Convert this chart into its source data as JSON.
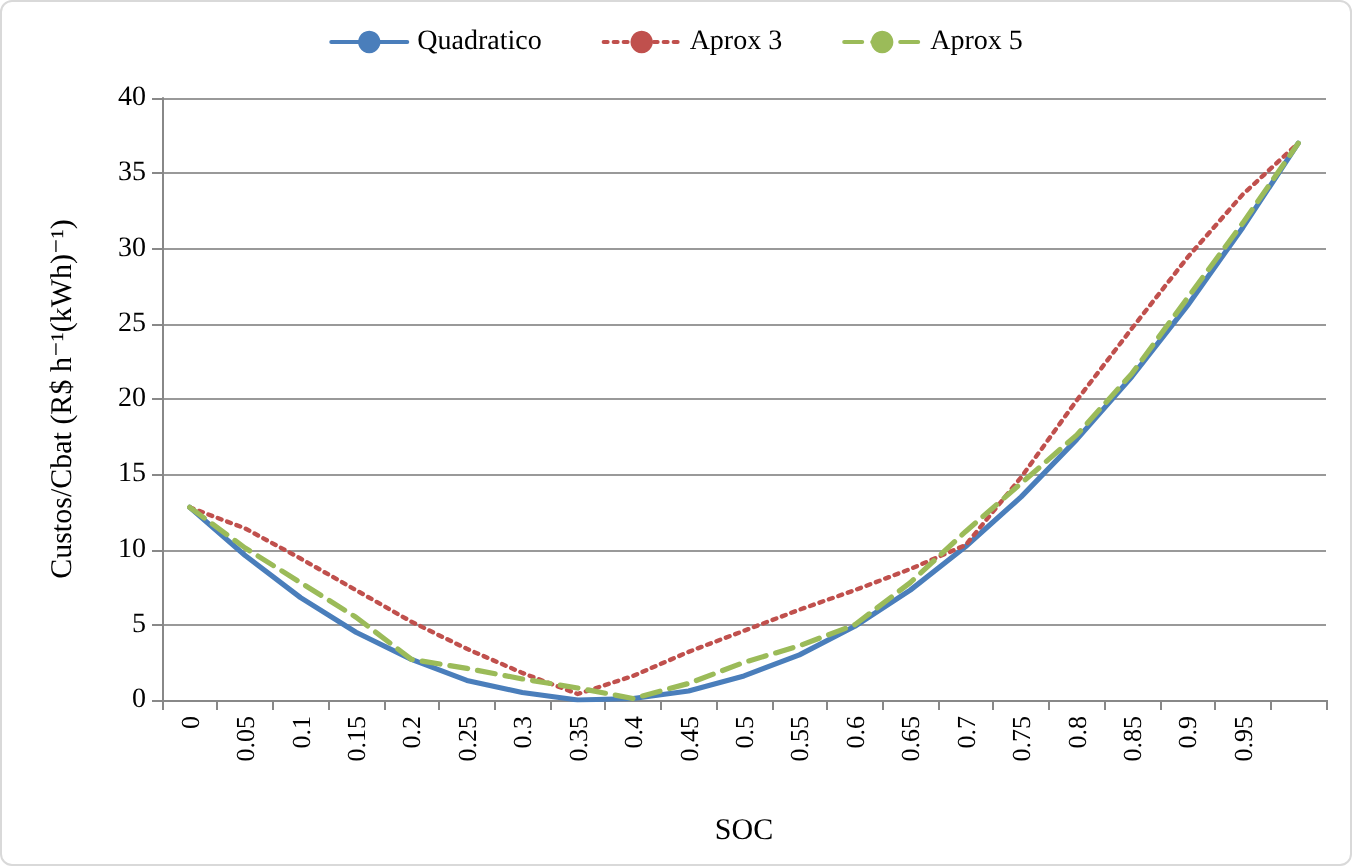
{
  "chart_data": {
    "type": "line",
    "xlabel": "SOC",
    "ylabel": "Custos/Cbat (R$ h⁻¹(kWh)⁻¹)",
    "categories": [
      "0",
      "0.05",
      "0.1",
      "0.15",
      "0.2",
      "0.25",
      "0.3",
      "0.35",
      "0.4",
      "0.45",
      "0.5",
      "0.55",
      "0.6",
      "0.65",
      "0.7",
      "0.75",
      "0.8",
      "0.85",
      "0.9",
      "0.95",
      null
    ],
    "series": [
      {
        "name": "Quadratico",
        "color": "#4a7ebb",
        "line_style": "solid",
        "values": [
          12.8,
          9.6,
          6.8,
          4.5,
          2.7,
          1.3,
          0.5,
          0.0,
          0.1,
          0.6,
          1.6,
          3.0,
          4.9,
          7.3,
          10.2,
          13.5,
          17.3,
          21.5,
          26.2,
          31.4,
          37.0
        ]
      },
      {
        "name": "Aprox 3",
        "color": "#c0504d",
        "line_style": "dotted",
        "values": [
          12.8,
          11.4,
          9.4,
          7.3,
          5.2,
          3.4,
          1.8,
          0.4,
          1.6,
          3.2,
          4.6,
          6.0,
          7.3,
          8.7,
          10.3,
          14.8,
          19.9,
          24.7,
          29.4,
          33.6,
          37.0
        ]
      },
      {
        "name": "Aprox 5",
        "color": "#9bbb59",
        "line_style": "dashed",
        "values": [
          12.8,
          10.1,
          7.8,
          5.5,
          2.7,
          2.1,
          1.4,
          0.8,
          0.1,
          1.1,
          2.5,
          3.6,
          5.0,
          7.8,
          11.2,
          14.4,
          17.6,
          21.7,
          26.7,
          31.7,
          37.0
        ]
      }
    ],
    "ylim": [
      0,
      40
    ],
    "yticks": [
      0,
      5,
      10,
      15,
      20,
      25,
      30,
      35,
      40
    ],
    "grid": "y",
    "legend": "top",
    "marker": "none"
  }
}
